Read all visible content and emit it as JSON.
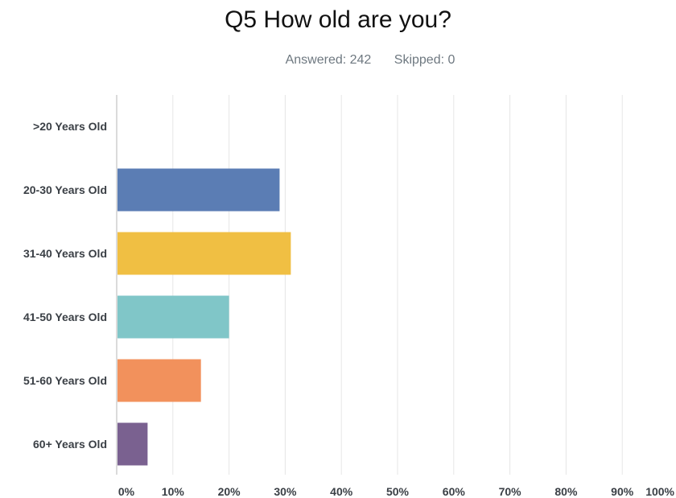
{
  "chart_data": {
    "type": "bar",
    "orientation": "horizontal",
    "title": "Q5 How old are you?",
    "subtitle": {
      "answered": "Answered: 242",
      "skipped": "Skipped: 0"
    },
    "categories": [
      ">20 Years Old",
      "20-30 Years Old",
      "31-40 Years Old",
      "41-50 Years Old",
      "51-60 Years Old",
      "60+ Years Old"
    ],
    "values": [
      0,
      29,
      31,
      20,
      15,
      5.5
    ],
    "colors": [
      "#5b7db4",
      "#5b7db4",
      "#f0bf43",
      "#80c6c8",
      "#f2915c",
      "#7a6190"
    ],
    "xlim": [
      0,
      100
    ],
    "xticks": [
      "0%",
      "10%",
      "20%",
      "30%",
      "40%",
      "50%",
      "60%",
      "70%",
      "80%",
      "90%",
      "100%"
    ],
    "grid": true
  }
}
